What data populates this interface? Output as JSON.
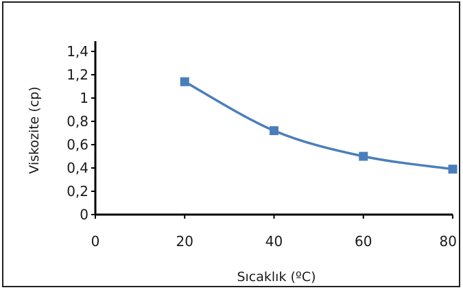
{
  "chart_data": {
    "type": "scatter",
    "title": "",
    "xlabel": "Sıcaklık (ºC)",
    "ylabel": "Viskozite (cp)",
    "xlim": [
      0,
      80
    ],
    "ylim": [
      0,
      1.4
    ],
    "x_ticks": [
      "0",
      "20",
      "40",
      "60",
      "80"
    ],
    "y_ticks": [
      "0",
      "0,2",
      "0,4",
      "0,6",
      "0,8",
      "1",
      "1,2",
      "1,4"
    ],
    "grid": false,
    "legend": "none",
    "trendline": "polynomial",
    "series": [
      {
        "x": [
          20,
          40,
          60,
          80
        ],
        "y": [
          1.14,
          0.72,
          0.5,
          0.39
        ],
        "color": "#4a7ebb",
        "marker": "square"
      }
    ]
  }
}
